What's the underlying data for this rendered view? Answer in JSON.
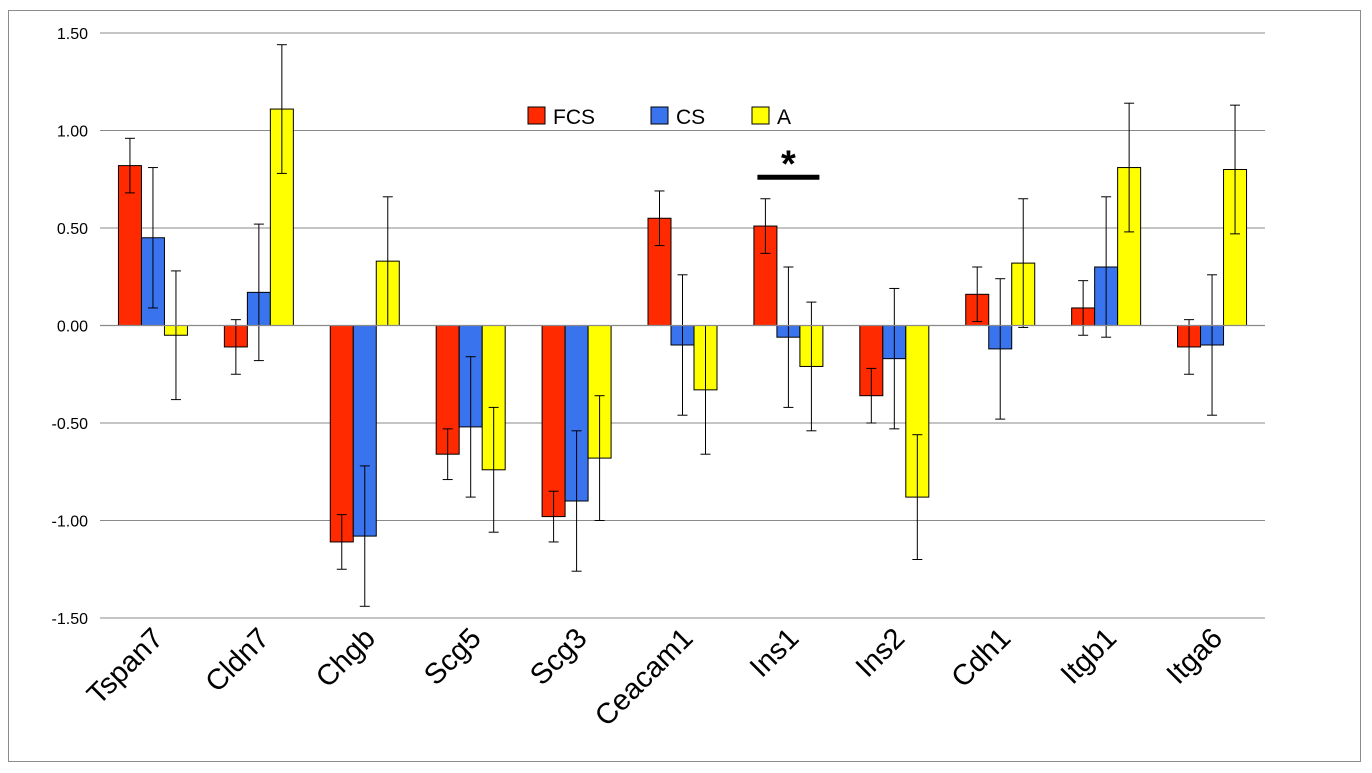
{
  "chart_data": {
    "type": "bar",
    "title": "",
    "xlabel": "",
    "ylabel": "",
    "ylim": [
      -1.5,
      1.5
    ],
    "yticks": [
      1.5,
      1.0,
      0.5,
      0.0,
      -0.5,
      -1.0,
      -1.5
    ],
    "ytick_labels": [
      "1.50",
      "1.00",
      "0.50",
      "0.00",
      "-0.50",
      "-1.00",
      "-1.50"
    ],
    "grid": true,
    "legend_position": "top-center",
    "categories": [
      "Tspan7",
      "Cldn7",
      "Chgb",
      "Scg5",
      "Scg3",
      "Ceacam1",
      "Ins1",
      "Ins2",
      "Cdh1",
      "Itgb1",
      "Itga6"
    ],
    "series": [
      {
        "name": "FCS",
        "color": "#ff2a00",
        "values": [
          0.82,
          -0.11,
          -1.11,
          -0.66,
          -0.98,
          0.55,
          0.51,
          -0.36,
          0.16,
          0.09,
          -0.11
        ],
        "errors": [
          0.14,
          0.14,
          0.14,
          0.13,
          0.13,
          0.14,
          0.14,
          0.14,
          0.14,
          0.14,
          0.14
        ]
      },
      {
        "name": "CS",
        "color": "#3a73ee",
        "values": [
          0.45,
          0.17,
          -1.08,
          -0.52,
          -0.9,
          -0.1,
          -0.06,
          -0.17,
          -0.12,
          0.3,
          -0.1
        ],
        "errors": [
          0.36,
          0.35,
          0.36,
          0.36,
          0.36,
          0.36,
          0.36,
          0.36,
          0.36,
          0.36,
          0.36
        ]
      },
      {
        "name": "A",
        "color": "#ffff00",
        "values": [
          -0.05,
          1.11,
          0.33,
          -0.74,
          -0.68,
          -0.33,
          -0.21,
          -0.88,
          0.32,
          0.81,
          0.8
        ],
        "errors": [
          0.33,
          0.33,
          0.33,
          0.32,
          0.32,
          0.33,
          0.33,
          0.32,
          0.33,
          0.33,
          0.33
        ]
      }
    ],
    "annotations": [
      {
        "text": "*",
        "category": "Ins1",
        "type": "significance-bar",
        "y": 0.76
      }
    ]
  }
}
